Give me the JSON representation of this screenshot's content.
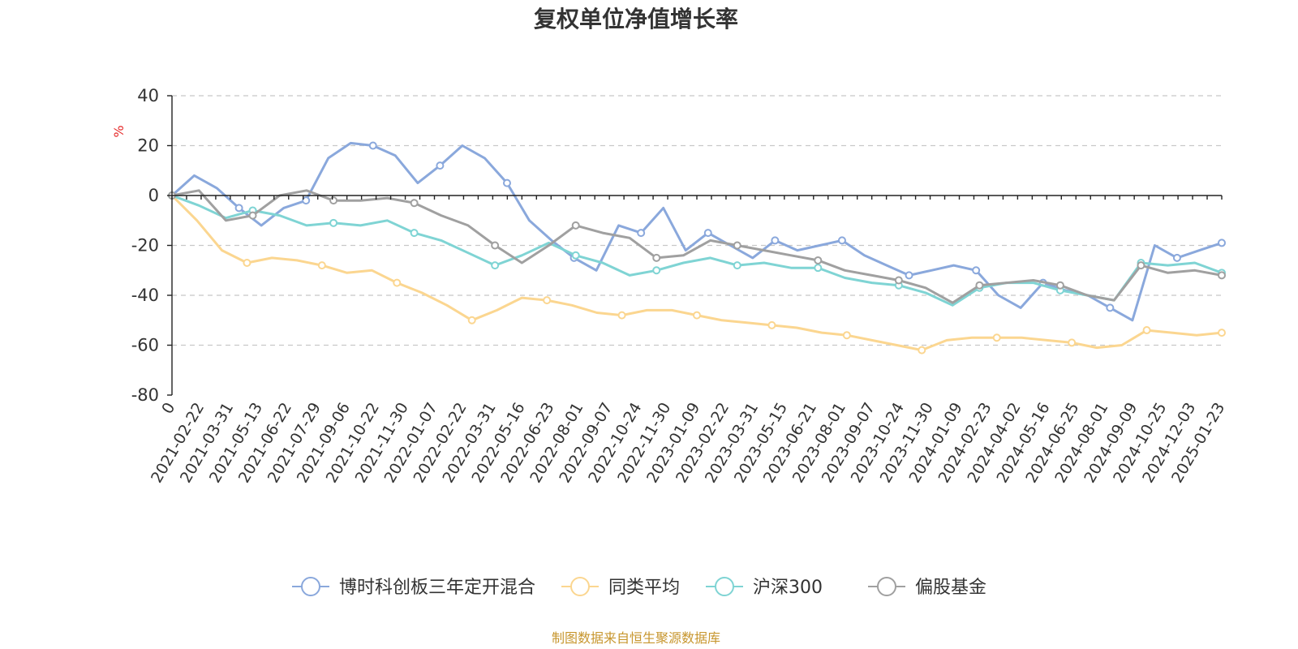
{
  "chart_data": {
    "type": "line",
    "title": "复权单位净值增长率",
    "ylabel": "%",
    "ylim": [
      -80,
      40
    ],
    "yticks": [
      40,
      20,
      0,
      -20,
      -40,
      -60,
      -80
    ],
    "x_start_label": "0",
    "x_labels": [
      "2021-02-22",
      "2021-03-31",
      "2021-05-13",
      "2021-06-22",
      "2021-07-29",
      "2021-09-06",
      "2021-10-22",
      "2021-11-30",
      "2022-01-07",
      "2022-02-22",
      "2022-03-31",
      "2022-05-16",
      "2022-06-23",
      "2022-08-01",
      "2022-09-07",
      "2022-10-24",
      "2022-11-30",
      "2023-01-09",
      "2023-02-22",
      "2023-03-31",
      "2023-05-15",
      "2023-06-21",
      "2023-08-01",
      "2023-09-07",
      "2023-10-24",
      "2023-11-30",
      "2024-01-09",
      "2024-02-23",
      "2024-04-02",
      "2024-05-16",
      "2024-06-25",
      "2024-08-01",
      "2024-09-09",
      "2024-10-25",
      "2024-12-03",
      "2025-01-23"
    ],
    "series": [
      {
        "name": "博时科创板三年定开混合",
        "color": "#8aa8dc",
        "values": [
          0,
          8,
          3,
          -5,
          -12,
          -5,
          -2,
          15,
          21,
          20,
          16,
          5,
          12,
          20,
          15,
          5,
          -10,
          -18,
          -25,
          -30,
          -12,
          -15,
          -5,
          -22,
          -15,
          -20,
          -25,
          -18,
          -22,
          -20,
          -18,
          -24,
          -28,
          -32,
          -30,
          -28,
          -30,
          -40,
          -45,
          -35,
          -38,
          -40,
          -45,
          -50,
          -20,
          -25,
          -22,
          -19
        ]
      },
      {
        "name": "同类平均",
        "color": "#fbd690",
        "values": [
          0,
          -10,
          -22,
          -27,
          -25,
          -26,
          -28,
          -31,
          -30,
          -35,
          -39,
          -44,
          -50,
          -46,
          -41,
          -42,
          -44,
          -47,
          -48,
          -46,
          -46,
          -48,
          -50,
          -51,
          -52,
          -53,
          -55,
          -56,
          -58,
          -60,
          -62,
          -58,
          -57,
          -57,
          -57,
          -58,
          -59,
          -61,
          -60,
          -54,
          -55,
          -56,
          -55
        ]
      },
      {
        "name": "沪深300",
        "color": "#7fd4d4",
        "values": [
          0,
          -4,
          -9,
          -6,
          -8,
          -12,
          -11,
          -12,
          -10,
          -15,
          -18,
          -23,
          -28,
          -24,
          -19,
          -24,
          -27,
          -32,
          -30,
          -27,
          -25,
          -28,
          -27,
          -29,
          -29,
          -33,
          -35,
          -36,
          -39,
          -44,
          -37,
          -35,
          -35,
          -38,
          -40,
          -42,
          -27,
          -28,
          -27,
          -31
        ]
      },
      {
        "name": "偏股基金",
        "color": "#a0a0a0",
        "values": [
          0,
          2,
          -10,
          -8,
          0,
          2,
          -2,
          -2,
          -1,
          -3,
          -8,
          -12,
          -20,
          -27,
          -20,
          -12,
          -15,
          -17,
          -25,
          -24,
          -18,
          -20,
          -22,
          -24,
          -26,
          -30,
          -32,
          -34,
          -37,
          -43,
          -36,
          -35,
          -34,
          -36,
          -40,
          -42,
          -28,
          -31,
          -30,
          -32
        ]
      }
    ]
  },
  "source": "制图数据来自恒生聚源数据库"
}
